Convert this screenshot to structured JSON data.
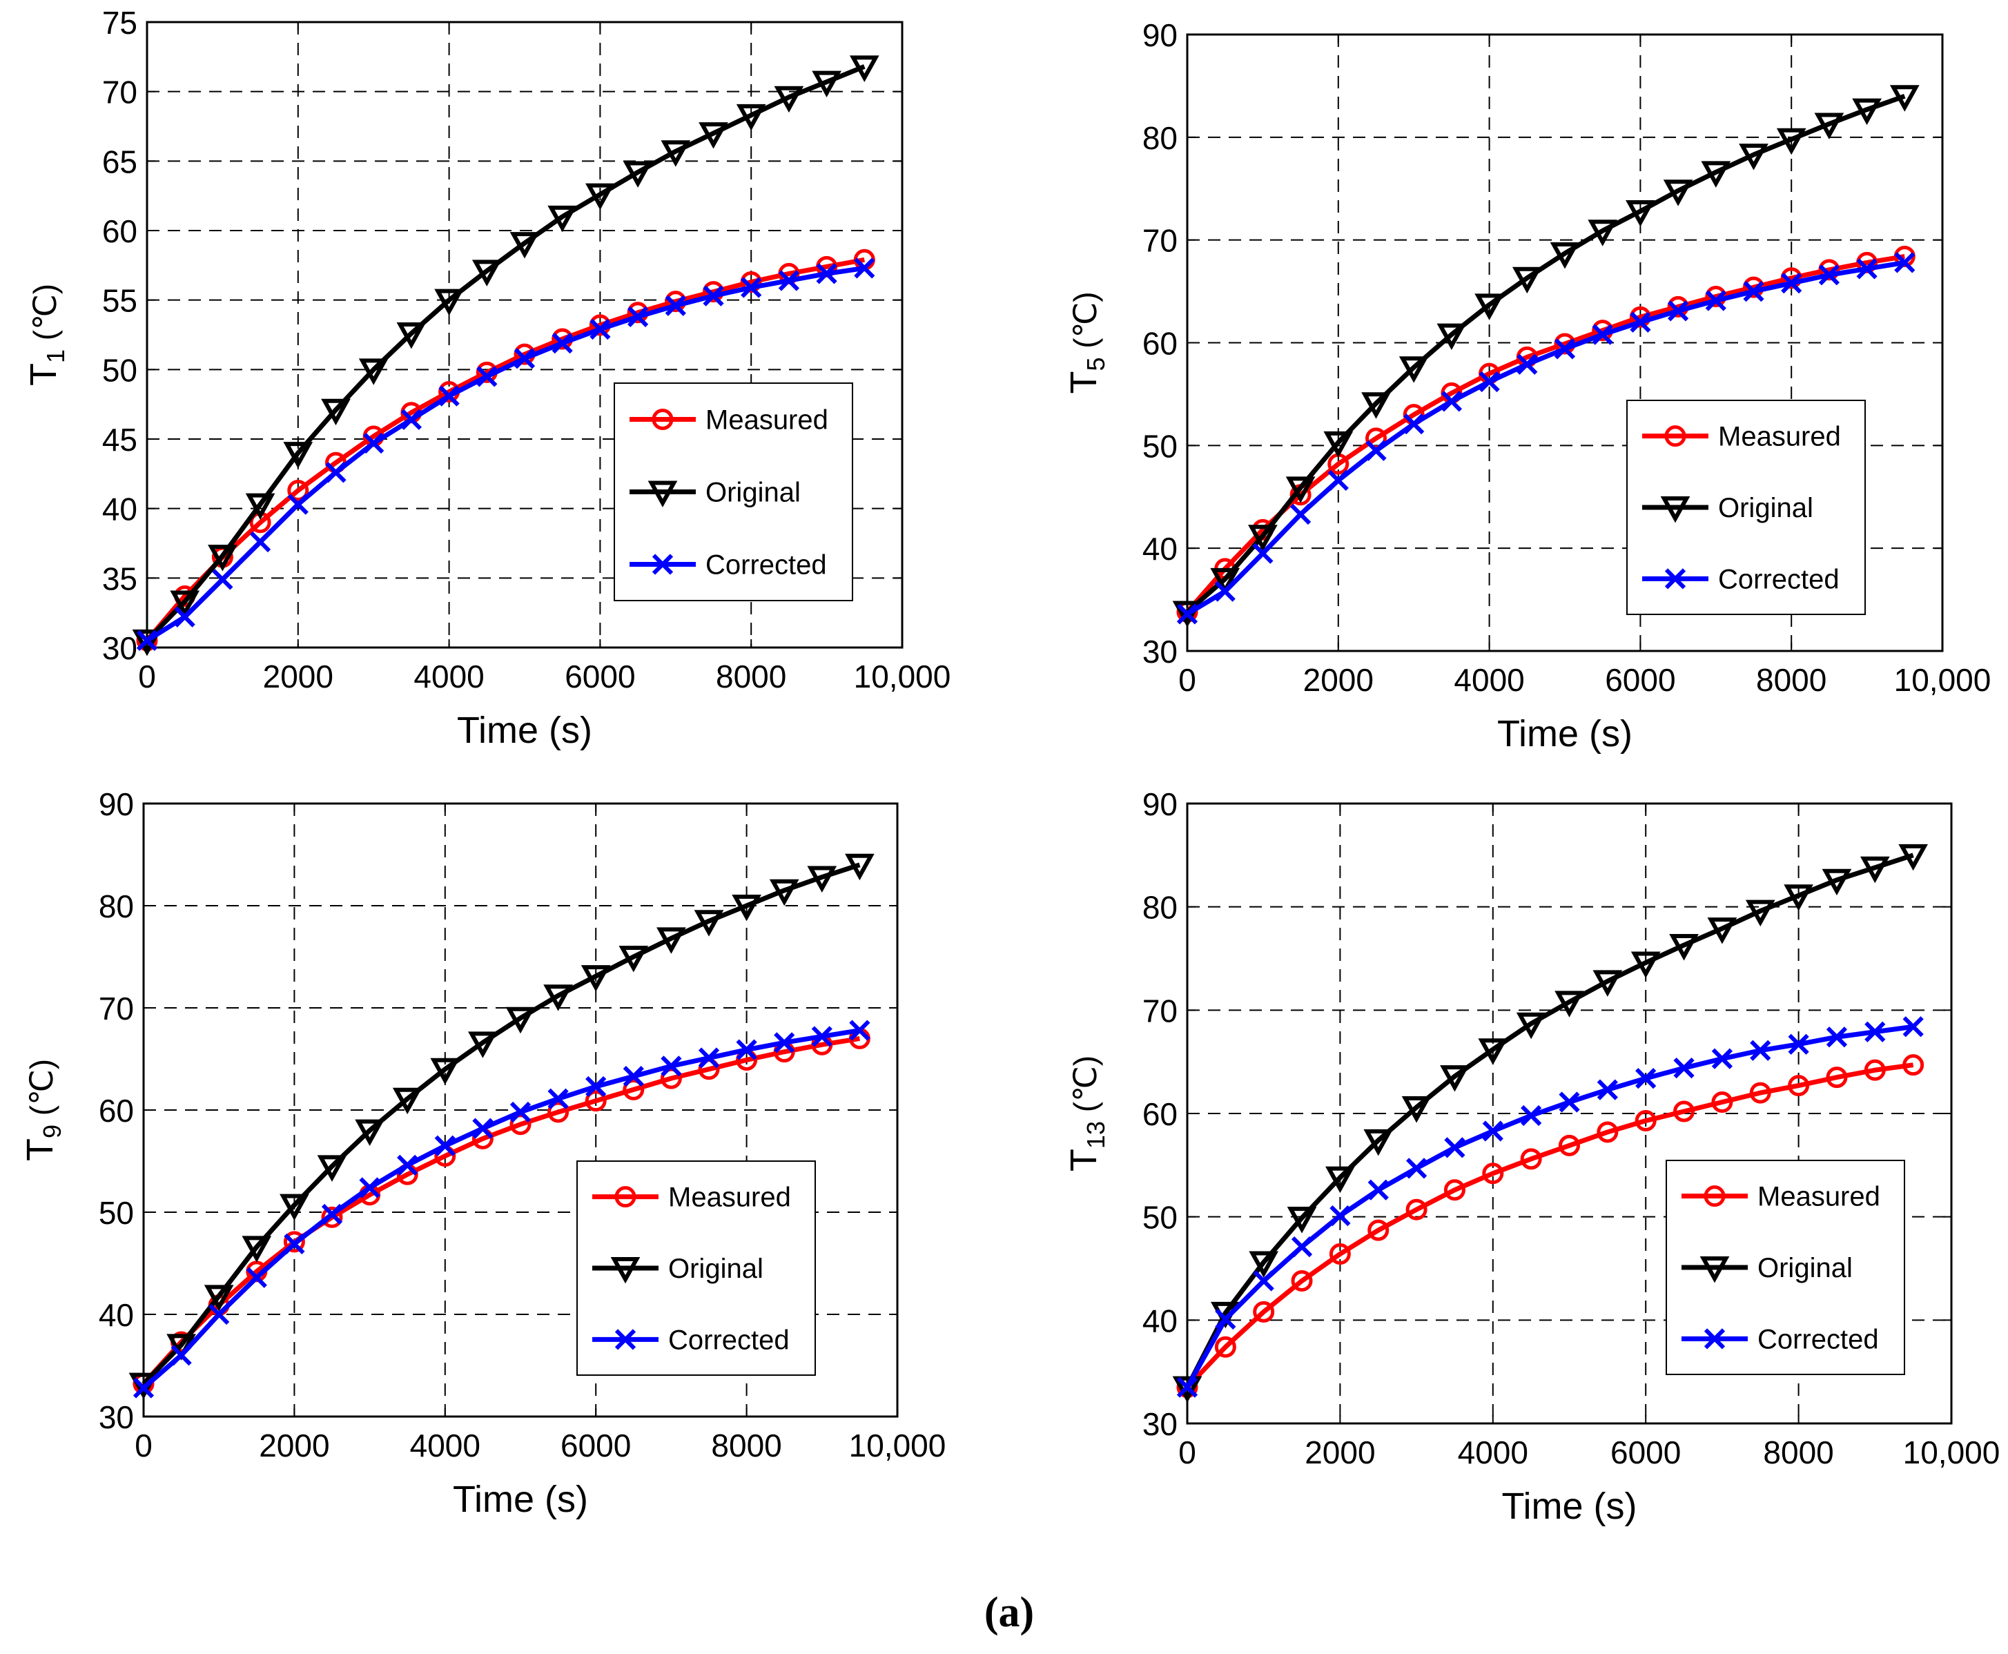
{
  "figure": {
    "caption": "(a)"
  },
  "colors": {
    "measured": "#ff0000",
    "original": "#000000",
    "corrected": "#0000ff",
    "grid": "#000000",
    "background": "#ffffff"
  },
  "chart_data": [
    {
      "type": "line",
      "xlabel": "Time (s)",
      "ylabel_main": "T",
      "ylabel_sub": "1",
      "ylabel_unit": " (℃)",
      "xlim": [
        0,
        10000
      ],
      "ylim": [
        30,
        75
      ],
      "xticks": [
        0,
        2000,
        4000,
        6000,
        8000,
        10000
      ],
      "xtick_labels": [
        "0",
        "2000",
        "4000",
        "6000",
        "8000",
        "10,000"
      ],
      "yticks": [
        30,
        35,
        40,
        45,
        50,
        55,
        60,
        65,
        70,
        75
      ],
      "ytick_labels": [
        "30",
        "35",
        "40",
        "45",
        "50",
        "55",
        "60",
        "65",
        "70",
        "75"
      ],
      "grid": true,
      "legend_position": "center-right",
      "x": [
        0,
        500,
        1000,
        1500,
        2000,
        2500,
        3000,
        3500,
        4000,
        4500,
        5000,
        5500,
        6000,
        6500,
        7000,
        7500,
        8000,
        8500,
        9000,
        9500
      ],
      "series": [
        {
          "name": "Measured",
          "marker": "circle",
          "color_key": "measured",
          "values": [
            30.5,
            33.7,
            36.5,
            39.0,
            41.3,
            43.3,
            45.2,
            46.9,
            48.4,
            49.8,
            51.1,
            52.2,
            53.2,
            54.1,
            54.9,
            55.6,
            56.3,
            56.9,
            57.4,
            57.9
          ]
        },
        {
          "name": "Original",
          "marker": "triangle-down",
          "color_key": "original",
          "values": [
            30.5,
            33.3,
            36.6,
            40.3,
            44.0,
            47.1,
            50.0,
            52.6,
            55.0,
            57.1,
            59.1,
            61.0,
            62.6,
            64.2,
            65.7,
            67.0,
            68.3,
            69.6,
            70.7,
            71.8
          ]
        },
        {
          "name": "Corrected",
          "marker": "x",
          "color_key": "corrected",
          "values": [
            30.5,
            32.2,
            34.9,
            37.6,
            40.3,
            42.6,
            44.7,
            46.4,
            48.1,
            49.5,
            50.8,
            51.9,
            52.9,
            53.8,
            54.6,
            55.3,
            55.9,
            56.4,
            56.9,
            57.3
          ]
        }
      ]
    },
    {
      "type": "line",
      "xlabel": "Time (s)",
      "ylabel_main": "T",
      "ylabel_sub": "5",
      "ylabel_unit": " (℃)",
      "xlim": [
        0,
        10000
      ],
      "ylim": [
        30,
        90
      ],
      "xticks": [
        0,
        2000,
        4000,
        6000,
        8000,
        10000
      ],
      "xtick_labels": [
        "0",
        "2000",
        "4000",
        "6000",
        "8000",
        "10,000"
      ],
      "yticks": [
        30,
        40,
        50,
        60,
        70,
        80,
        90
      ],
      "ytick_labels": [
        "30",
        "40",
        "50",
        "60",
        "70",
        "80",
        "90"
      ],
      "grid": true,
      "legend_position": "center-right",
      "x": [
        0,
        500,
        1000,
        1500,
        2000,
        2500,
        3000,
        3500,
        4000,
        4500,
        5000,
        5500,
        6000,
        6500,
        7000,
        7500,
        8000,
        8500,
        9000,
        9500
      ],
      "series": [
        {
          "name": "Measured",
          "marker": "circle",
          "color_key": "measured",
          "values": [
            33.8,
            38.0,
            41.8,
            45.2,
            48.2,
            50.7,
            53.0,
            55.1,
            57.0,
            58.6,
            59.9,
            61.2,
            62.5,
            63.5,
            64.5,
            65.4,
            66.3,
            67.1,
            67.8,
            68.4
          ]
        },
        {
          "name": "Original",
          "marker": "triangle-down",
          "color_key": "original",
          "values": [
            33.8,
            37.0,
            41.2,
            45.9,
            50.3,
            54.1,
            57.6,
            60.8,
            63.7,
            66.3,
            68.7,
            70.9,
            72.8,
            74.8,
            76.6,
            78.3,
            79.8,
            81.3,
            82.7,
            84.0
          ]
        },
        {
          "name": "Corrected",
          "marker": "x",
          "color_key": "corrected",
          "values": [
            33.6,
            35.8,
            39.5,
            43.3,
            46.6,
            49.5,
            52.1,
            54.3,
            56.2,
            57.9,
            59.4,
            60.8,
            62.0,
            63.1,
            64.1,
            65.0,
            65.8,
            66.6,
            67.2,
            67.8
          ]
        }
      ]
    },
    {
      "type": "line",
      "xlabel": "Time (s)",
      "ylabel_main": "T",
      "ylabel_sub": "9",
      "ylabel_unit": " (℃)",
      "xlim": [
        0,
        10000
      ],
      "ylim": [
        30,
        90
      ],
      "xticks": [
        0,
        2000,
        4000,
        6000,
        8000,
        10000
      ],
      "xtick_labels": [
        "0",
        "2000",
        "4000",
        "6000",
        "8000",
        "10,000"
      ],
      "yticks": [
        30,
        40,
        50,
        60,
        70,
        80,
        90
      ],
      "ytick_labels": [
        "30",
        "40",
        "50",
        "60",
        "70",
        "80",
        "90"
      ],
      "grid": true,
      "legend_position": "lower-right",
      "x": [
        0,
        500,
        1000,
        1500,
        2000,
        2500,
        3000,
        3500,
        4000,
        4500,
        5000,
        5500,
        6000,
        6500,
        7000,
        7500,
        8000,
        8500,
        9000,
        9500
      ],
      "series": [
        {
          "name": "Measured",
          "marker": "circle",
          "color_key": "measured",
          "values": [
            33.2,
            37.3,
            40.9,
            44.2,
            47.1,
            49.5,
            51.7,
            53.7,
            55.5,
            57.2,
            58.6,
            59.8,
            60.9,
            62.0,
            63.1,
            64.0,
            64.9,
            65.7,
            66.4,
            67.0
          ]
        },
        {
          "name": "Original",
          "marker": "triangle-down",
          "color_key": "original",
          "values": [
            33.2,
            37.0,
            41.8,
            46.6,
            50.7,
            54.5,
            58.0,
            61.1,
            64.0,
            66.6,
            69.0,
            71.2,
            73.1,
            75.0,
            76.8,
            78.5,
            80.0,
            81.5,
            82.8,
            84.0
          ]
        },
        {
          "name": "Corrected",
          "marker": "x",
          "color_key": "corrected",
          "values": [
            32.8,
            36.0,
            40.0,
            43.6,
            46.9,
            49.8,
            52.4,
            54.6,
            56.5,
            58.2,
            59.8,
            61.1,
            62.3,
            63.3,
            64.3,
            65.1,
            65.9,
            66.6,
            67.2,
            67.8
          ]
        }
      ]
    },
    {
      "type": "line",
      "xlabel": "Time (s)",
      "ylabel_main": "T",
      "ylabel_sub": "13",
      "ylabel_unit": " (℃)",
      "xlim": [
        0,
        10000
      ],
      "ylim": [
        30,
        90
      ],
      "xticks": [
        0,
        2000,
        4000,
        6000,
        8000,
        10000
      ],
      "xtick_labels": [
        "0",
        "2000",
        "4000",
        "6000",
        "8000",
        "10,000"
      ],
      "yticks": [
        30,
        40,
        50,
        60,
        70,
        80,
        90
      ],
      "ytick_labels": [
        "30",
        "40",
        "50",
        "60",
        "70",
        "80",
        "90"
      ],
      "grid": true,
      "legend_position": "lower-right",
      "x": [
        0,
        500,
        1000,
        1500,
        2000,
        2500,
        3000,
        3500,
        4000,
        4500,
        5000,
        5500,
        6000,
        6500,
        7000,
        7500,
        8000,
        8500,
        9000,
        9500
      ],
      "series": [
        {
          "name": "Measured",
          "marker": "circle",
          "color_key": "measured",
          "values": [
            33.5,
            37.4,
            40.8,
            43.8,
            46.4,
            48.7,
            50.7,
            52.6,
            54.2,
            55.6,
            56.9,
            58.2,
            59.3,
            60.2,
            61.1,
            62.0,
            62.7,
            63.5,
            64.2,
            64.7
          ]
        },
        {
          "name": "Original",
          "marker": "triangle-down",
          "color_key": "original",
          "values": [
            33.5,
            40.7,
            45.6,
            49.9,
            53.8,
            57.4,
            60.6,
            63.6,
            66.2,
            68.7,
            70.8,
            72.8,
            74.6,
            76.3,
            77.9,
            79.6,
            81.1,
            82.6,
            83.8,
            85.0
          ]
        },
        {
          "name": "Corrected",
          "marker": "x",
          "color_key": "corrected",
          "values": [
            33.5,
            40.1,
            43.8,
            47.1,
            50.1,
            52.6,
            54.7,
            56.7,
            58.3,
            59.8,
            61.1,
            62.3,
            63.4,
            64.4,
            65.3,
            66.1,
            66.7,
            67.4,
            67.9,
            68.4
          ]
        }
      ]
    }
  ]
}
